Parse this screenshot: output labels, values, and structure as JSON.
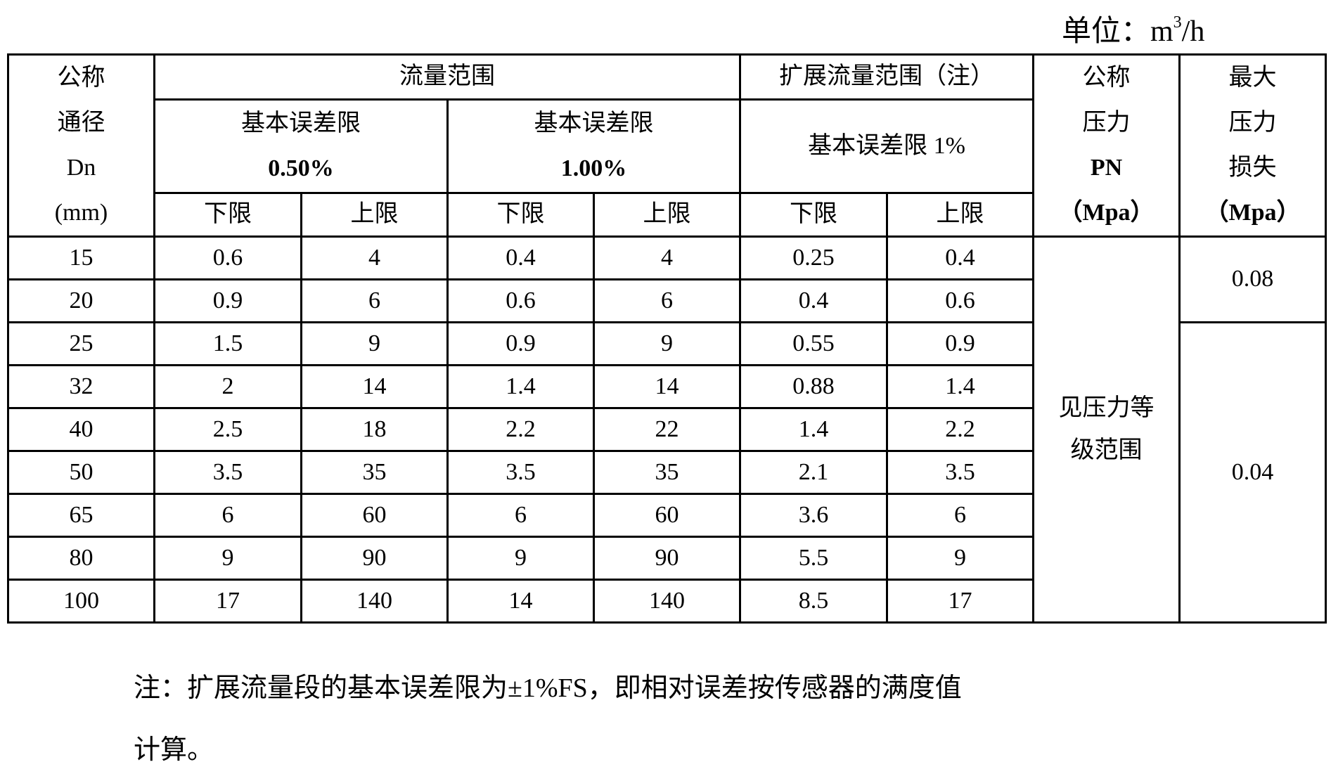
{
  "unit": {
    "prefix": "单位：m",
    "sup": "3",
    "suffix": "/h"
  },
  "header": {
    "dn": [
      "公称",
      "通径",
      "Dn",
      "(mm)"
    ],
    "flow_range": "流量范围",
    "ext_flow_range": "扩展流量范围（注）",
    "err_050": [
      "基本误差限",
      "0.50%"
    ],
    "err_100": [
      "基本误差限",
      "1.00%"
    ],
    "err_ext": "基本误差限 1%",
    "pn": [
      "公称",
      "压力",
      "PN",
      "（Mpa）"
    ],
    "loss": [
      "最大",
      "压力",
      "损失",
      "（Mpa）"
    ],
    "lower": "下限",
    "upper": "上限"
  },
  "rows": [
    [
      "15",
      "0.6",
      "4",
      "0.4",
      "4",
      "0.25",
      "0.4"
    ],
    [
      "20",
      "0.9",
      "6",
      "0.6",
      "6",
      "0.4",
      "0.6"
    ],
    [
      "25",
      "1.5",
      "9",
      "0.9",
      "9",
      "0.55",
      "0.9"
    ],
    [
      "32",
      "2",
      "14",
      "1.4",
      "14",
      "0.88",
      "1.4"
    ],
    [
      "40",
      "2.5",
      "18",
      "2.2",
      "22",
      "1.4",
      "2.2"
    ],
    [
      "50",
      "3.5",
      "35",
      "3.5",
      "35",
      "2.1",
      "3.5"
    ],
    [
      "65",
      "6",
      "60",
      "6",
      "60",
      "3.6",
      "6"
    ],
    [
      "80",
      "9",
      "90",
      "9",
      "90",
      "5.5",
      "9"
    ],
    [
      "100",
      "17",
      "140",
      "14",
      "140",
      "8.5",
      "17"
    ]
  ],
  "pn_value": [
    "见压力等",
    "级范围"
  ],
  "loss_values": [
    "0.08",
    "0.04"
  ],
  "note": [
    "注：扩展流量段的基本误差限为±1%FS，即相对误差按传感器的满度值",
    "计算。"
  ]
}
